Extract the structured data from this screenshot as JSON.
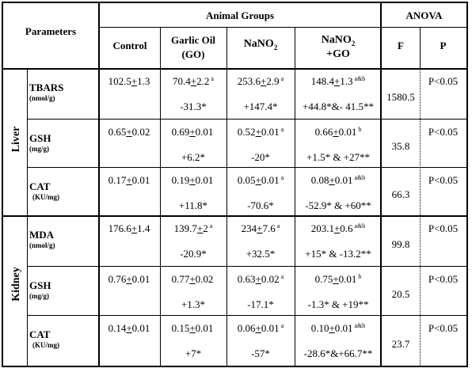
{
  "headers": {
    "parameters": "Parameters",
    "animal_groups": "Animal Groups",
    "anova": "ANOVA",
    "control": "Control",
    "garlic_line1": "Garlic Oil",
    "garlic_line2": "(GO)",
    "nano2_base": "NaNO",
    "nano2_sub": "2",
    "nano2go_base": "NaNO",
    "nano2go_sub": "2",
    "nano2go_line2": "+GO",
    "f": "F",
    "p": "P"
  },
  "organs": {
    "liver": "Liver",
    "kidney": "Kidney"
  },
  "rows": [
    {
      "name": "TBARS",
      "unit": "(nmol/g)",
      "control": {
        "mean": "102.5",
        "pm": "+",
        "sd": "1.3",
        "sup": "",
        "change": ""
      },
      "go": {
        "mean": "70.4",
        "pm": "+",
        "sd": "2.2",
        "sup": "a",
        "change": "-31.3*"
      },
      "nano2": {
        "mean": "253.6",
        "pm": "+",
        "sd": "2.9",
        "sup": "a",
        "change": "+147.4*"
      },
      "nano2go": {
        "mean": "148.4",
        "pm": "+",
        "sd": "1.3",
        "sup": "a&b",
        "change": "+44.8*&- 41.5**"
      },
      "f": "1580.5",
      "p": "P<0.05"
    },
    {
      "name": "GSH",
      "unit": "(mg/g)",
      "control": {
        "mean": "0.65",
        "pm": "+",
        "sd": "0.02",
        "sup": "",
        "change": ""
      },
      "go": {
        "mean": "0.69",
        "pm": "+",
        "sd": "0.01",
        "sup": "",
        "change": "+6.2*"
      },
      "nano2": {
        "mean": "0.52",
        "pm": "+",
        "sd": "0.01",
        "sup": "a",
        "change": "-20*"
      },
      "nano2go": {
        "mean": "0.66",
        "pm": "+",
        "sd": "0.01",
        "sup": "b",
        "change": "+1.5* & +27**"
      },
      "f": "35.8",
      "p": "P<0.05"
    },
    {
      "name": "CAT",
      "unit": "(KU/mg)",
      "control": {
        "mean": "0.17",
        "pm": "+",
        "sd": "0.01",
        "sup": "",
        "change": ""
      },
      "go": {
        "mean": "0.19",
        "pm": "+",
        "sd": "0.01",
        "sup": "",
        "change": "+11.8*"
      },
      "nano2": {
        "mean": "0.05",
        "pm": "+",
        "sd": "0.01",
        "sup": "a",
        "change": "-70.6*"
      },
      "nano2go": {
        "mean": "0.08",
        "pm": "+",
        "sd": "0.01",
        "sup": "a&b",
        "change": "-52.9* & +60**"
      },
      "f": "66.3",
      "p": "P<0.05"
    },
    {
      "name": "MDA",
      "unit": "(nmol/g)",
      "control": {
        "mean": "176.6",
        "pm": "+",
        "sd": "1.4",
        "sup": "",
        "change": ""
      },
      "go": {
        "mean": "139.7",
        "pm": "+",
        "sd": "2",
        "sup": "a",
        "change": "-20.9*"
      },
      "nano2": {
        "mean": "234",
        "pm": "+",
        "sd": "7.6",
        "sup": "a",
        "change": "+32.5*"
      },
      "nano2go": {
        "mean": "203.1",
        "pm": "+",
        "sd": "0.6",
        "sup": "a&b",
        "change": "+15* & -13.2**"
      },
      "f": "99.8",
      "p": "P<0.05"
    },
    {
      "name": "GSH",
      "unit": "(mg/g)",
      "control": {
        "mean": "0.76",
        "pm": "+",
        "sd": "0.01",
        "sup": "",
        "change": ""
      },
      "go": {
        "mean": "0.77",
        "pm": "+",
        "sd": "0.02",
        "sup": "",
        "change": "+1.3*"
      },
      "nano2": {
        "mean": "0.63",
        "pm": "+",
        "sd": "0.02",
        "sup": "a",
        "change": "-17.1*"
      },
      "nano2go": {
        "mean": "0.75",
        "pm": "+",
        "sd": "0.01",
        "sup": "b",
        "change": "-1.3* & +19**"
      },
      "f": "20.5",
      "p": "P<0.05"
    },
    {
      "name": "CAT",
      "unit": "(KU/mg)",
      "control": {
        "mean": "0.14",
        "pm": "+",
        "sd": "0.01",
        "sup": "",
        "change": ""
      },
      "go": {
        "mean": "0.15",
        "pm": "+",
        "sd": "0.01",
        "sup": "",
        "change": "+7*"
      },
      "nano2": {
        "mean": "0.06",
        "pm": "+",
        "sd": "0.01",
        "sup": "a",
        "change": "-57*"
      },
      "nano2go": {
        "mean": "0.10",
        "pm": "+",
        "sd": "0.01",
        "sup": "a&b",
        "change": "-28.6*&+66.7**"
      },
      "f": "23.7",
      "p": "P<0.05"
    }
  ]
}
